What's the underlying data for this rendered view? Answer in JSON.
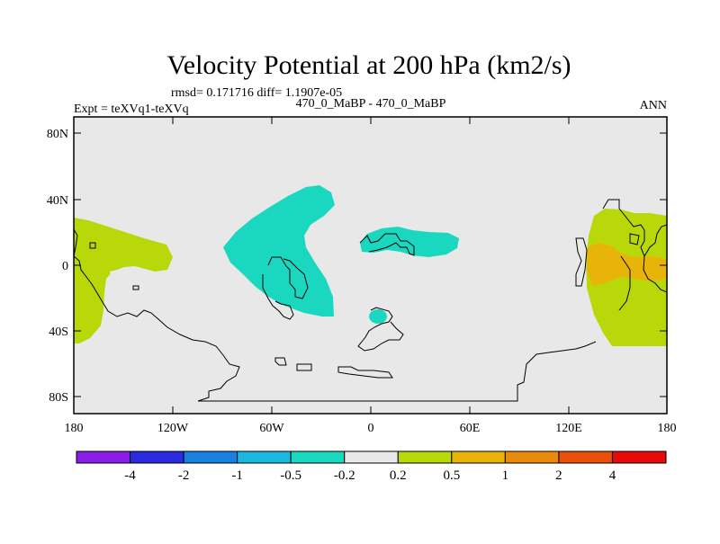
{
  "title": "Velocity Potential at 200 hPa (km2/s)",
  "stats": "rmsd= 0.171716 diff= 1.1907e-05",
  "expt": "Expt = teXVq1-teXVq",
  "case": "470_0_MaBP - 470_0_MaBP",
  "season": "ANN",
  "y_ticks": [
    "80N",
    "40N",
    "0",
    "40S",
    "80S"
  ],
  "x_ticks": [
    "180",
    "120W",
    "60W",
    "0",
    "60E",
    "120E",
    "180"
  ],
  "colorbar": {
    "colors": [
      "#8a1de6",
      "#2a2ae0",
      "#1a80e0",
      "#1ab8e0",
      "#1ad8c0",
      "#e8e8e8",
      "#b8d80a",
      "#e8b40a",
      "#e88a0a",
      "#e8500a",
      "#e80a0a"
    ],
    "labels": [
      "-4",
      "-2",
      "-1",
      "-0.5",
      "-0.2",
      "0.2",
      "0.5",
      "1",
      "2",
      "4"
    ]
  },
  "field_colors": {
    "background": "#e8e8e8",
    "negative": "#1ad8c0",
    "positive": "#b8d80a",
    "strong_positive": "#e8b40a"
  }
}
